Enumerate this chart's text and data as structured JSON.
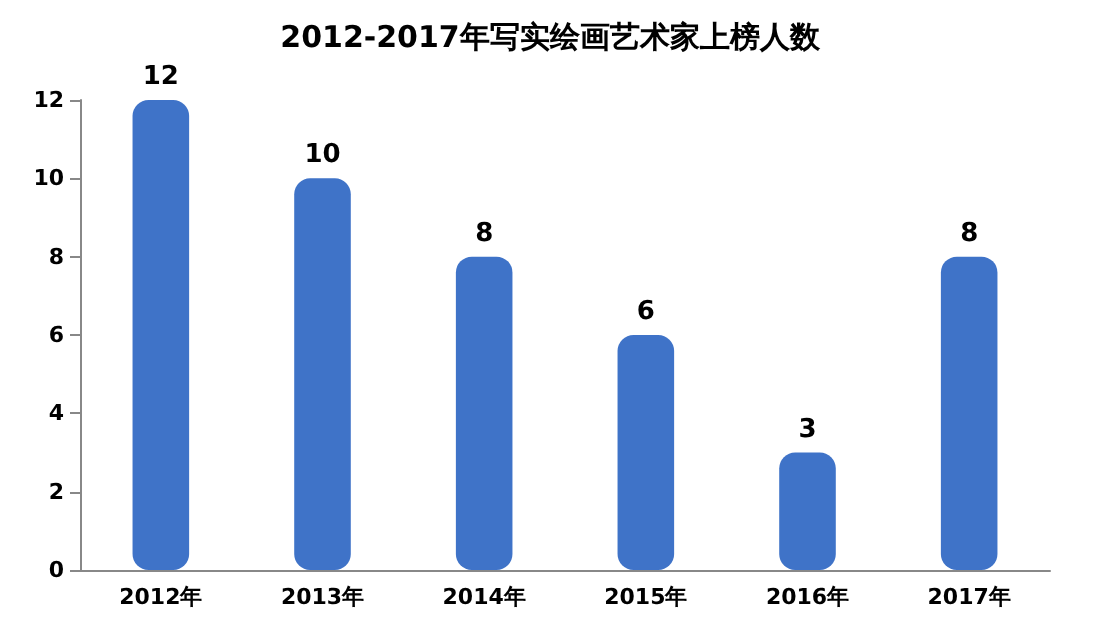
{
  "chart_data": {
    "type": "bar",
    "title": "2012-2017年写实绘画艺术家上榜人数",
    "categories": [
      "2012年",
      "2013年",
      "2014年",
      "2015年",
      "2016年",
      "2017年"
    ],
    "values": [
      12,
      10,
      8,
      6,
      3,
      8
    ],
    "color": "#3f73c8",
    "ylim": [
      0,
      12
    ],
    "yticks": [
      0,
      2,
      4,
      6,
      8,
      10,
      12
    ],
    "grid": false,
    "data_labels": true
  }
}
